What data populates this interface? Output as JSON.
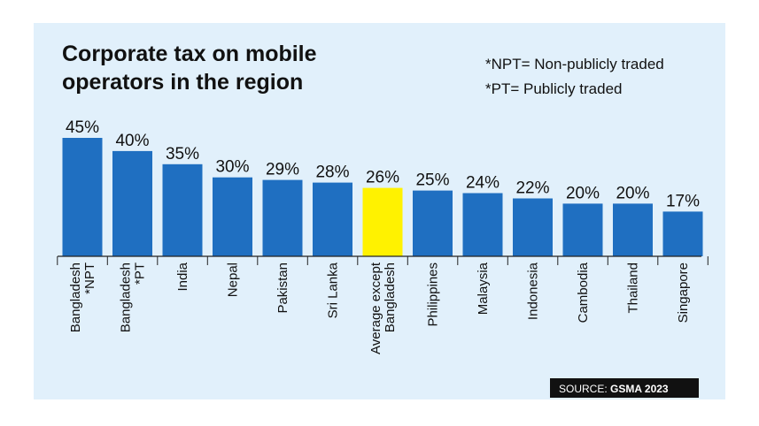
{
  "chart_data": {
    "type": "bar",
    "title": "Corporate tax on mobile operators in the region",
    "title_lines": [
      "Corporate tax on mobile",
      "operators in the region"
    ],
    "legend_notes": [
      "*NPT= Non-publicly traded",
      "*PT= Publicly traded"
    ],
    "categories": [
      [
        "Bangladesh",
        "*NPT"
      ],
      [
        "Bangladesh",
        "*PT"
      ],
      [
        "India"
      ],
      [
        "Nepal"
      ],
      [
        "Pakistan"
      ],
      [
        "Sri Lanka"
      ],
      [
        "Average except",
        "Bangladesh"
      ],
      [
        "Philippines"
      ],
      [
        "Malaysia"
      ],
      [
        "Indonesia"
      ],
      [
        "Cambodia"
      ],
      [
        "Thailand"
      ],
      [
        "Singapore"
      ]
    ],
    "values": [
      45,
      40,
      35,
      30,
      29,
      28,
      26,
      25,
      24,
      22,
      20,
      20,
      17
    ],
    "value_labels": [
      "45%",
      "40%",
      "35%",
      "30%",
      "29%",
      "28%",
      "26%",
      "25%",
      "24%",
      "22%",
      "20%",
      "20%",
      "17%"
    ],
    "highlight_index": 6,
    "ylim": [
      0,
      45
    ],
    "xlabel": "",
    "ylabel": "",
    "grid": false,
    "colors": {
      "bar": "#1f6fc1",
      "highlight": "#fff200",
      "background": "#e1f0fb",
      "baseline": "#222222"
    },
    "source": {
      "prefix": "SOURCE: ",
      "name": "GSMA 2023"
    }
  }
}
